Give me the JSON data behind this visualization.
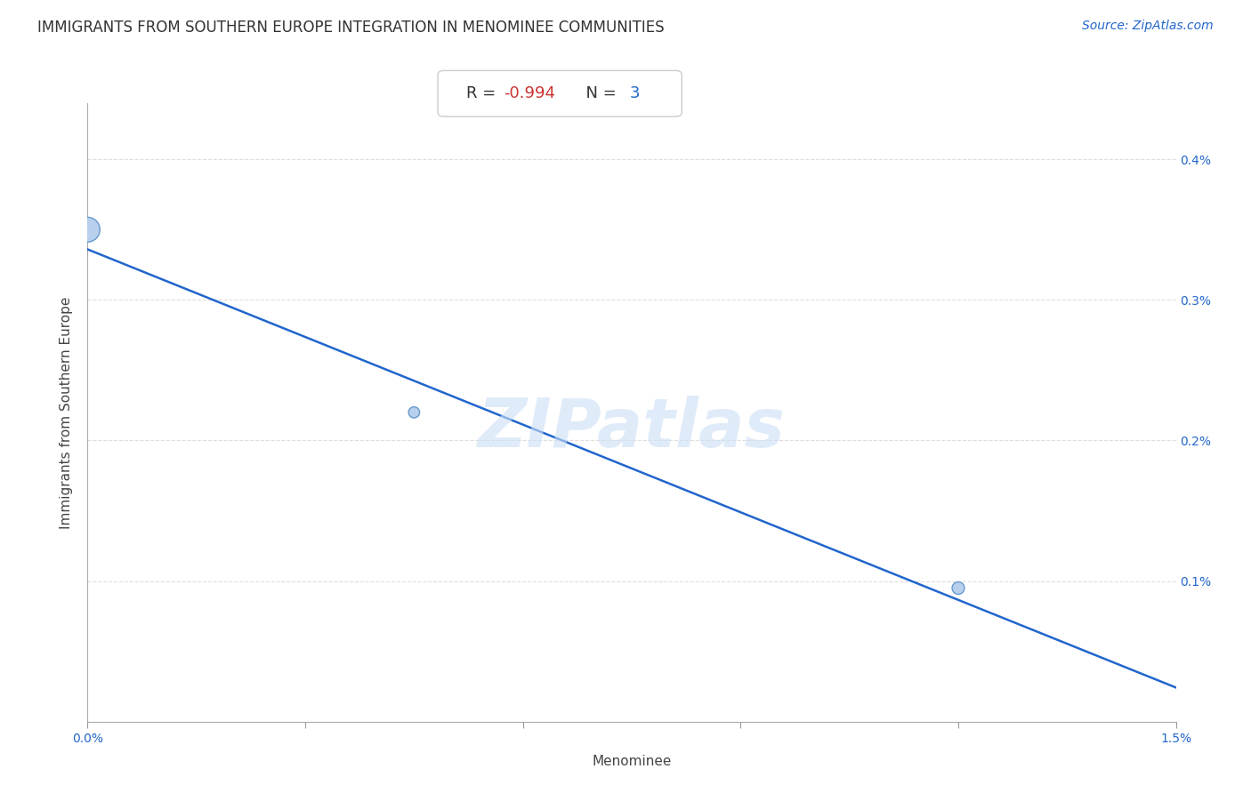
{
  "title": "IMMIGRANTS FROM SOUTHERN EUROPE INTEGRATION IN MENOMINEE COMMUNITIES",
  "source": "Source: ZipAtlas.com",
  "xlabel": "Menominee",
  "ylabel": "Immigrants from Southern Europe",
  "scatter_x": [
    0.0,
    0.0045,
    0.012
  ],
  "scatter_y": [
    0.0035,
    0.0022,
    0.00095
  ],
  "scatter_sizes": [
    400,
    80,
    100
  ],
  "scatter_color": "#b8d0ed",
  "scatter_edge_color": "#6699cc",
  "line_color": "#2266cc",
  "line_width": 1.8,
  "r_value": "-0.994",
  "n_value": "3",
  "r_color": "#cc3333",
  "n_color": "#2266cc",
  "label_color": "#2266cc",
  "watermark_text": "ZIPatlas",
  "watermark_color": "#ccdff5",
  "xlim": [
    0.0,
    0.015
  ],
  "ylim": [
    0.0,
    0.0044
  ],
  "xtick_positions": [
    0.0,
    0.003,
    0.006,
    0.009,
    0.012,
    0.015
  ],
  "xtick_labels": [
    "0.0%",
    "",
    "",
    "",
    "",
    "1.5%"
  ],
  "ytick_positions": [
    0.0,
    0.001,
    0.002,
    0.003,
    0.004
  ],
  "ytick_labels": [
    "",
    "0.1%",
    "0.2%",
    "0.3%",
    "0.4%"
  ],
  "grid_color": "#dddddd",
  "background_color": "#ffffff",
  "title_fontsize": 12,
  "axis_label_fontsize": 11,
  "tick_fontsize": 10,
  "source_fontsize": 10
}
